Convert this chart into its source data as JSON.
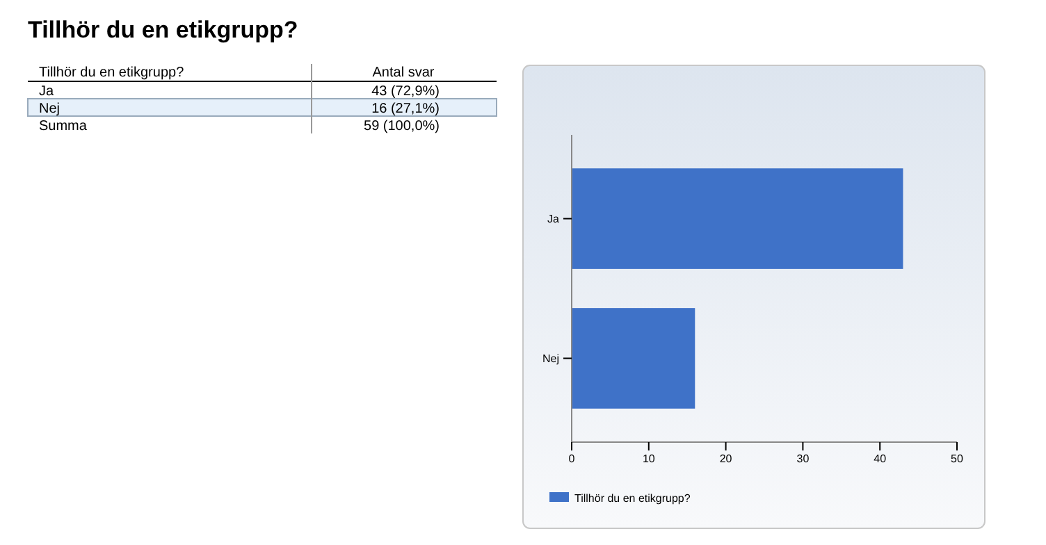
{
  "chart_data": {
    "type": "bar",
    "orientation": "horizontal",
    "title": "Tillhör du en etikgrupp?",
    "categories": [
      "Ja",
      "Nej"
    ],
    "series": [
      {
        "name": "Tillhör du en etikgrupp?",
        "color": "#3f72c8",
        "values": [
          43,
          16
        ]
      }
    ],
    "xlim": [
      0,
      50
    ],
    "xticks": [
      0,
      10,
      20,
      30,
      40,
      50
    ],
    "grid": false,
    "legend": "bottom left",
    "annotations": [
      "Tillhör du en etikgrupp?",
      "Antal svar",
      "43 (72,9%)",
      "16 (27,1%)",
      "Summa",
      "59 (100,0%)"
    ]
  }
}
